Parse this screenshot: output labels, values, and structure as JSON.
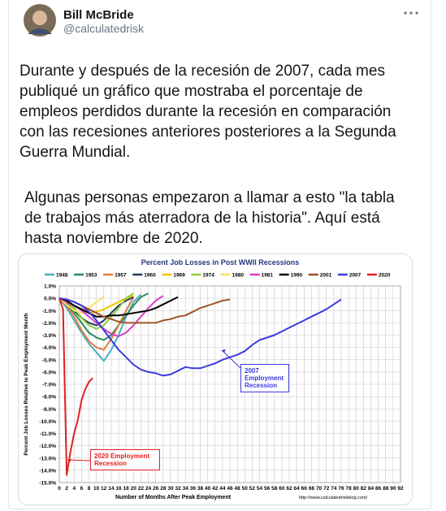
{
  "tweet": {
    "name": "Bill McBride",
    "handle": "@calculatedrisk",
    "paragraphs": [
      "Durante y después de la recesión de 2007, cada mes publiqué un gráfico que mostraba el porcentaje de empleos perdidos durante la recesión en comparación con las recesiones anteriores posteriores a la Segunda Guerra Mundial.",
      "Algunas personas empezaron a llamar a esto \"la tabla de trabajos más aterradora de la historia\". Aquí está hasta noviembre de 2020."
    ]
  },
  "chart_data": {
    "type": "line",
    "title": "Percent Job Losses in Post WWII Recessions",
    "ylabel": "Percent Job Losses Relative to Peak Employment Month",
    "xlabel": "Number of Months After Peak Employment",
    "source": "http://www.calculatedriskblog.com/",
    "annotations": [
      "2007 Employment Recession",
      "2020 Employment Recession"
    ],
    "xlim": [
      0,
      92
    ],
    "ylim": [
      -15,
      1
    ],
    "grid": true,
    "xticks": [
      0,
      2,
      4,
      6,
      8,
      10,
      12,
      14,
      16,
      18,
      20,
      22,
      24,
      26,
      28,
      30,
      32,
      34,
      36,
      38,
      40,
      42,
      44,
      46,
      48,
      50,
      52,
      54,
      56,
      58,
      60,
      62,
      64,
      66,
      68,
      70,
      72,
      74,
      76,
      78,
      80,
      82,
      84,
      86,
      88,
      90,
      92
    ],
    "yticks": [
      {
        "value": 1,
        "label": "1.0%"
      },
      {
        "value": 0,
        "label": "0.0%"
      },
      {
        "value": -1,
        "label": "-1.0%"
      },
      {
        "value": -2,
        "label": "-2.0%"
      },
      {
        "value": -3,
        "label": "-3.0%"
      },
      {
        "value": -4,
        "label": "-4.0%"
      },
      {
        "value": -5,
        "label": "-5.0%"
      },
      {
        "value": -6,
        "label": "-6.0%"
      },
      {
        "value": -7,
        "label": "-7.0%"
      },
      {
        "value": -8,
        "label": "-8.0%"
      },
      {
        "value": -9,
        "label": "-9.0%"
      },
      {
        "value": -10,
        "label": "-10.0%"
      },
      {
        "value": -11,
        "label": "-11.0%"
      },
      {
        "value": -12,
        "label": "-12.0%"
      },
      {
        "value": -13,
        "label": "-13.0%"
      },
      {
        "value": -14,
        "label": "-14.0%"
      },
      {
        "value": -15,
        "label": "-15.0%"
      }
    ],
    "series": [
      {
        "name": "1948",
        "color": "#4bacc6",
        "x": [
          0,
          2,
          4,
          6,
          8,
          10,
          12,
          14,
          16,
          18,
          20,
          22
        ],
        "values": [
          0,
          -0.8,
          -1.8,
          -2.8,
          -3.7,
          -4.4,
          -5.1,
          -4.2,
          -3.0,
          -1.5,
          -0.3,
          0.3
        ]
      },
      {
        "name": "1953",
        "color": "#2e8b57",
        "x": [
          0,
          2,
          4,
          6,
          8,
          10,
          12,
          14,
          16,
          18,
          20,
          22,
          24
        ],
        "values": [
          0,
          -0.5,
          -1.2,
          -2,
          -2.8,
          -3.2,
          -3.4,
          -3,
          -2.2,
          -1.4,
          -0.6,
          0.1,
          0.4
        ]
      },
      {
        "name": "1957",
        "color": "#e07b39",
        "x": [
          0,
          2,
          4,
          6,
          8,
          10,
          12,
          14,
          16,
          18,
          20
        ],
        "values": [
          0,
          -0.6,
          -1.5,
          -2.6,
          -3.5,
          -4,
          -4.2,
          -3.3,
          -2.2,
          -1,
          0.1
        ]
      },
      {
        "name": "1960",
        "color": "#1f3a5f",
        "x": [
          0,
          2,
          4,
          6,
          8,
          10,
          12,
          14,
          16,
          18,
          20
        ],
        "values": [
          0,
          -0.4,
          -1,
          -1.6,
          -2,
          -2.2,
          -1.8,
          -1.2,
          -0.6,
          -0.2,
          0.1
        ]
      },
      {
        "name": "1969",
        "color": "#f2c200",
        "x": [
          0,
          2,
          4,
          6,
          8,
          10,
          12,
          14,
          16,
          18,
          20
        ],
        "values": [
          0,
          -0.2,
          -0.6,
          -0.9,
          -1.2,
          -1.1,
          -0.9,
          -0.6,
          -0.3,
          0,
          0.2
        ]
      },
      {
        "name": "1974",
        "color": "#8fcc3a",
        "x": [
          0,
          2,
          4,
          6,
          8,
          10,
          12,
          14,
          16,
          18,
          20
        ],
        "values": [
          0,
          -0.2,
          -0.8,
          -1.6,
          -2.2,
          -2.5,
          -2.2,
          -1.5,
          -0.8,
          0,
          0.4
        ]
      },
      {
        "name": "1980",
        "color": "#ffe066",
        "x": [
          0,
          2,
          4,
          6,
          8,
          10,
          12
        ],
        "values": [
          0,
          -0.5,
          -1,
          -1.2,
          -0.8,
          -0.3,
          0.1
        ]
      },
      {
        "name": "1981",
        "color": "#d63fc5",
        "x": [
          0,
          2,
          4,
          6,
          8,
          10,
          12,
          14,
          16,
          18,
          20,
          22,
          24,
          26,
          28
        ],
        "values": [
          0,
          -0.3,
          -0.6,
          -1,
          -1.5,
          -2,
          -2.5,
          -2.9,
          -3.1,
          -2.8,
          -2.2,
          -1.5,
          -0.8,
          -0.2,
          0.2
        ]
      },
      {
        "name": "1990",
        "color": "#000000",
        "x": [
          0,
          2,
          4,
          6,
          8,
          10,
          12,
          14,
          16,
          18,
          20,
          22,
          24,
          26,
          28,
          30,
          32
        ],
        "values": [
          0,
          -0.2,
          -0.6,
          -0.9,
          -1.2,
          -1.5,
          -1.5,
          -1.4,
          -1.4,
          -1.3,
          -1.2,
          -1.1,
          -1,
          -0.8,
          -0.5,
          -0.2,
          0.1
        ]
      },
      {
        "name": "2001",
        "color": "#a0522d",
        "x": [
          0,
          2,
          4,
          6,
          8,
          10,
          12,
          14,
          16,
          18,
          20,
          22,
          24,
          26,
          28,
          30,
          32,
          34,
          36,
          38,
          40,
          42,
          44,
          46
        ],
        "values": [
          0,
          -0.1,
          -0.3,
          -0.6,
          -0.9,
          -1.2,
          -1.5,
          -1.7,
          -1.9,
          -2,
          -2,
          -2,
          -2,
          -2,
          -1.8,
          -1.7,
          -1.5,
          -1.4,
          -1.1,
          -0.8,
          -0.6,
          -0.4,
          -0.2,
          -0.1
        ]
      },
      {
        "name": "2007",
        "color": "#3b3bdf",
        "x": [
          0,
          2,
          4,
          6,
          8,
          10,
          12,
          14,
          16,
          18,
          20,
          22,
          24,
          26,
          28,
          30,
          32,
          34,
          36,
          38,
          40,
          42,
          44,
          46,
          48,
          50,
          52,
          54,
          56,
          58,
          60,
          62,
          64,
          66,
          68,
          70,
          72,
          74,
          76
        ],
        "values": [
          0,
          -0.1,
          -0.3,
          -0.6,
          -1.1,
          -1.8,
          -2.6,
          -3.4,
          -4.2,
          -4.8,
          -5.4,
          -5.8,
          -6,
          -6.1,
          -6.3,
          -6.2,
          -5.9,
          -5.6,
          -5.7,
          -5.7,
          -5.5,
          -5.3,
          -5,
          -4.8,
          -4.6,
          -4.3,
          -3.8,
          -3.4,
          -3.2,
          -3,
          -2.7,
          -2.4,
          -2.1,
          -1.8,
          -1.5,
          -1.2,
          -0.9,
          -0.5,
          -0.1
        ]
      },
      {
        "name": "2020",
        "color": "#e02020",
        "x": [
          0,
          1,
          2,
          3,
          4,
          5,
          6,
          7,
          8,
          9
        ],
        "values": [
          0,
          -0.9,
          -14.4,
          -12.5,
          -11,
          -9.9,
          -8.3,
          -7.4,
          -6.8,
          -6.5
        ]
      }
    ]
  }
}
